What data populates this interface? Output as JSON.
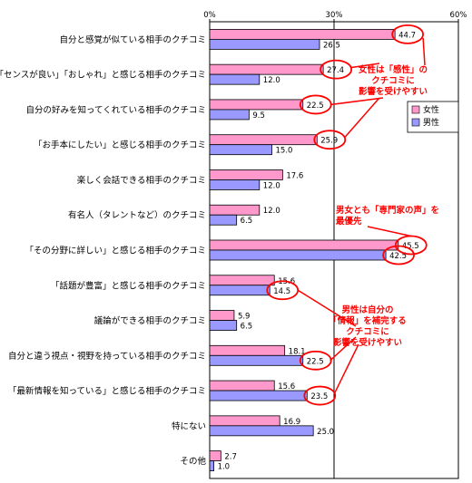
{
  "chart_data": {
    "type": "bar",
    "orientation": "horizontal",
    "categories": [
      "自分と感覚が似ている相手のクチコミ",
      "「センスが良い」「おしゃれ」と感じる相手のクチコミ",
      "自分の好みを知ってくれている相手のクチコミ",
      "「お手本にしたい」と感じる相手のクチコミ",
      "楽しく会話できる相手のクチコミ",
      "有名人（タレントなど）のクチコミ",
      "「その分野に詳しい」と感じる相手のクチコミ",
      "「話題が豊富」と感じる相手のクチコミ",
      "議論ができる相手のクチコミ",
      "自分と違う視点・視野を持っている相手のクチコミ",
      "「最新情報を知っている」と感じる相手のクチコミ",
      "特にない",
      "その他"
    ],
    "series": [
      {
        "name": "女性",
        "color": "#ff99cc",
        "values": [
          44.7,
          27.4,
          22.5,
          25.9,
          17.6,
          12.0,
          45.5,
          15.6,
          5.9,
          18.1,
          15.6,
          16.9,
          2.7
        ],
        "labels": [
          "44.7",
          "27.4",
          "22.5",
          "25.9",
          "17.6",
          "12.0",
          "45.5",
          "15.6",
          "5.9",
          "18.1",
          "15.6",
          "16.9",
          "2.7"
        ]
      },
      {
        "name": "男性",
        "color": "#9999ff",
        "values": [
          26.5,
          12.0,
          9.5,
          15.0,
          12.0,
          6.5,
          42.5,
          14.5,
          6.5,
          22.5,
          23.5,
          25.0,
          1.0
        ],
        "labels": [
          "26.5",
          "12.0",
          "9.5",
          "15.0",
          "12.0",
          "6.5",
          "42.5",
          "14.5",
          "6.5",
          "22.5",
          "23.5",
          "25.0",
          "1.0"
        ]
      }
    ],
    "xlim": [
      0,
      60
    ],
    "xticks": [
      "0%",
      "30%",
      "60%"
    ],
    "grid": false,
    "reference_line": 30,
    "legend": {
      "placement": "right",
      "items": [
        "女性",
        "男性"
      ]
    },
    "annotations": [
      {
        "lines": [
          "女性は「感性」の",
          "クチコミに",
          "影響を受けやすい"
        ]
      },
      {
        "lines": [
          "男女とも「専門家の声」を",
          "最優先"
        ]
      },
      {
        "lines": [
          "男性は自分の",
          "「情報」を補完する",
          "クチコミに",
          "影響を受けやすい"
        ]
      }
    ],
    "highlighted": [
      {
        "series": 0,
        "index": 0
      },
      {
        "series": 0,
        "index": 1
      },
      {
        "series": 0,
        "index": 2
      },
      {
        "series": 0,
        "index": 3
      },
      {
        "series": 0,
        "index": 6
      },
      {
        "series": 1,
        "index": 6
      },
      {
        "series": 1,
        "index": 7
      },
      {
        "series": 1,
        "index": 9
      },
      {
        "series": 1,
        "index": 10
      }
    ]
  }
}
